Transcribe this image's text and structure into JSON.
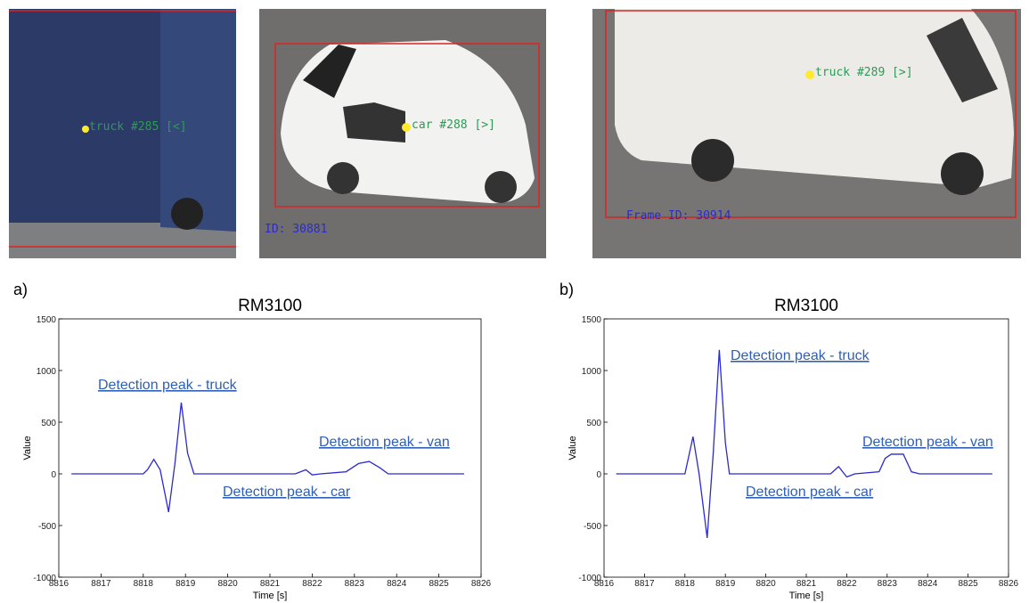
{
  "photos": [
    {
      "track_label": "truck #285 [<]"
    },
    {
      "track_label": "car #288 [>]",
      "frame_label": "ID: 30881"
    },
    {
      "track_label": "truck #289 [>]",
      "frame_label": "Frame ID: 30914"
    }
  ],
  "chart_data": [
    {
      "type": "line",
      "panel_label": "a)",
      "title": "RM3100",
      "xlabel": "Time [s]",
      "ylabel": "Value",
      "xlim": [
        8816,
        8826
      ],
      "ylim": [
        -1000,
        1500
      ],
      "xticks": [
        8816,
        8817,
        8818,
        8819,
        8820,
        8821,
        8822,
        8823,
        8824,
        8825,
        8826
      ],
      "yticks": [
        -1000,
        -500,
        0,
        500,
        1000,
        1500
      ],
      "series": [
        {
          "color": "#2a2ad0",
          "x": [
            8816.3,
            8818.0,
            8818.1,
            8818.25,
            8818.4,
            8818.6,
            8818.75,
            8818.9,
            8819.05,
            8819.2,
            8821.6,
            8821.85,
            8822.0,
            8822.2,
            8822.8,
            8823.1,
            8823.35,
            8823.6,
            8823.8,
            8825.6
          ],
          "values": [
            0,
            0,
            40,
            140,
            40,
            -370,
            100,
            690,
            200,
            0,
            0,
            40,
            -10,
            0,
            20,
            100,
            120,
            60,
            0,
            0
          ]
        }
      ],
      "annotations": [
        "Detection peak - truck",
        "Detection peak - van",
        "Detection peak - car"
      ]
    },
    {
      "type": "line",
      "panel_label": "b)",
      "title": "RM3100",
      "xlabel": "Time [s]",
      "ylabel": "Value",
      "xlim": [
        8816,
        8826
      ],
      "ylim": [
        -1000,
        1500
      ],
      "xticks": [
        8816,
        8817,
        8818,
        8819,
        8820,
        8821,
        8822,
        8823,
        8824,
        8825,
        8826
      ],
      "yticks": [
        -1000,
        -500,
        0,
        500,
        1000,
        1500
      ],
      "series": [
        {
          "color": "#2a2ad0",
          "x": [
            8816.3,
            8818.0,
            8818.2,
            8818.35,
            8818.55,
            8818.7,
            8818.85,
            8819.0,
            8819.1,
            8821.6,
            8821.8,
            8822.0,
            8822.2,
            8822.8,
            8822.95,
            8823.1,
            8823.4,
            8823.6,
            8823.8,
            8825.6
          ],
          "values": [
            0,
            0,
            360,
            0,
            -620,
            200,
            1200,
            300,
            0,
            0,
            70,
            -30,
            0,
            20,
            150,
            190,
            190,
            20,
            0,
            0
          ]
        }
      ],
      "annotations": [
        "Detection peak - truck",
        "Detection peak - van",
        "Detection peak - car"
      ]
    }
  ]
}
